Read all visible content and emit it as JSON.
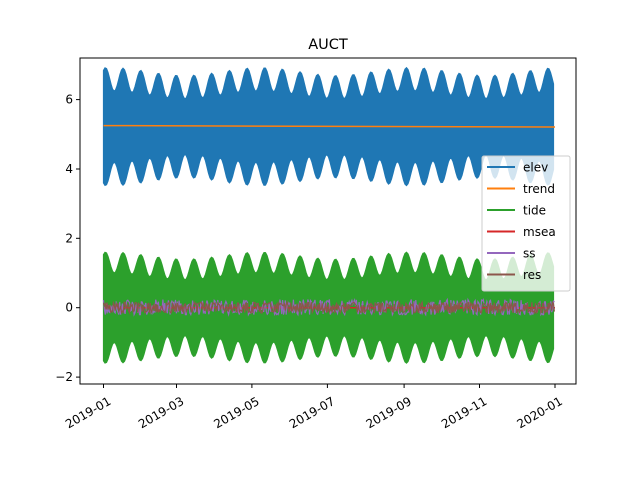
{
  "chart_data": {
    "type": "line",
    "title": "AUCT",
    "xlabel": "",
    "ylabel": "",
    "x_range": [
      "2019-01-01",
      "2019-12-31"
    ],
    "xlim": [
      "2018-12-13",
      "2020-01-18"
    ],
    "ylim": [
      -2.2,
      7.2
    ],
    "x_ticks": [
      "2019-01",
      "2019-03",
      "2019-05",
      "2019-07",
      "2019-09",
      "2019-11",
      "2020-01"
    ],
    "y_ticks": [
      "−2",
      "0",
      "2",
      "4",
      "6"
    ],
    "y_tick_values": [
      -2,
      0,
      2,
      4,
      6
    ],
    "grid": false,
    "legend_position": "center-right",
    "series": [
      {
        "name": "elev",
        "color": "#1f77b4",
        "center": 5.22,
        "amplitude_min": 0.8,
        "amplitude_max": 1.7,
        "min": 3.4,
        "max": 7.0
      },
      {
        "name": "trend",
        "color": "#ff7f0e",
        "values": [
          5.25,
          5.21
        ]
      },
      {
        "name": "tide",
        "color": "#2ca02c",
        "center": 0.0,
        "amplitude_min": 0.8,
        "amplitude_max": 1.6,
        "min": -1.7,
        "max": 1.6
      },
      {
        "name": "msea",
        "color": "#d62728",
        "values": [
          0.0,
          0.0
        ]
      },
      {
        "name": "ss",
        "color": "#9467bd",
        "center": 0.0,
        "amplitude_min": 0.05,
        "amplitude_max": 0.3,
        "min": -0.2,
        "max": 0.35
      },
      {
        "name": "res",
        "color": "#8c564b",
        "center": 0.0,
        "amplitude_min": 0.05,
        "amplitude_max": 0.2,
        "min": -0.2,
        "max": 0.35
      }
    ]
  }
}
